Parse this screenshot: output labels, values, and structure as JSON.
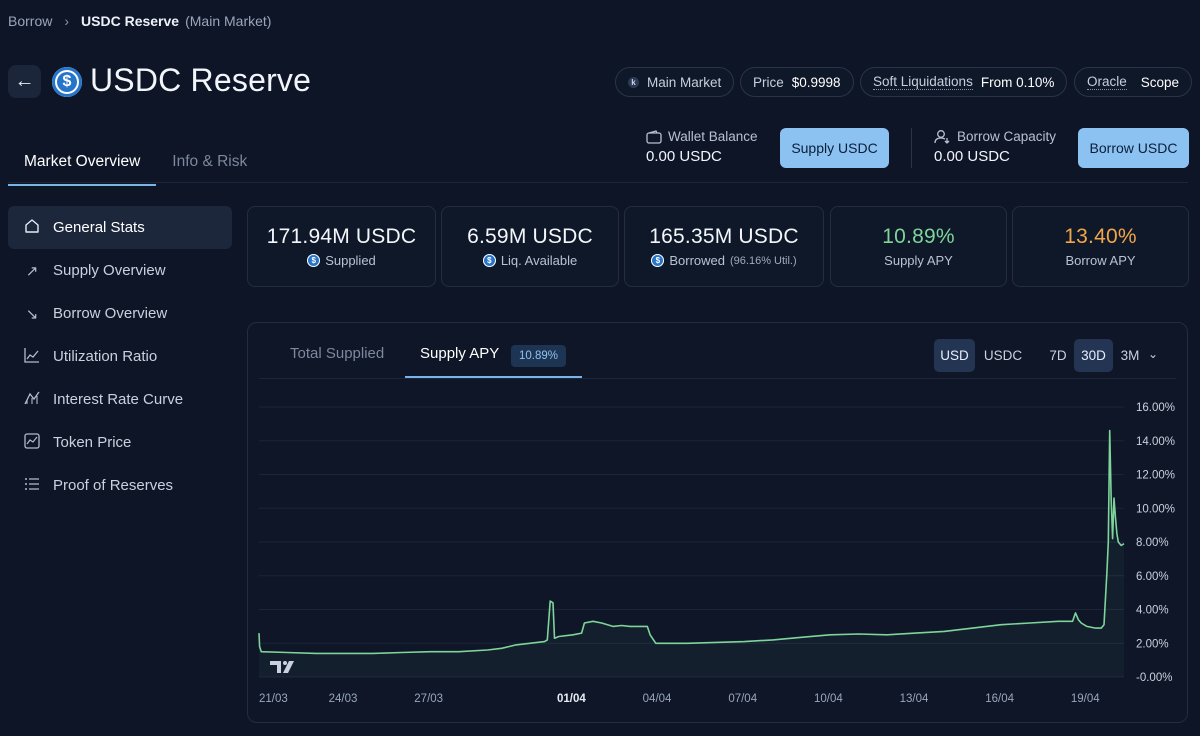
{
  "breadcrumb": {
    "parent": "Borrow",
    "current": "USDC Reserve",
    "market": "(Main Market)"
  },
  "title": "USDC Reserve",
  "header_pills": {
    "market": "Main Market",
    "price_label": "Price",
    "price_value": "$0.9998",
    "soft_liq_label": "Soft Liquidations",
    "soft_liq_value": "From 0.10%",
    "oracle_label": "Oracle",
    "oracle_value": "Scope"
  },
  "tabs": [
    {
      "label": "Market Overview"
    },
    {
      "label": "Info & Risk"
    }
  ],
  "wallet": {
    "label": "Wallet Balance",
    "value": "0.00 USDC",
    "button": "Supply USDC"
  },
  "capacity": {
    "label": "Borrow Capacity",
    "value": "0.00 USDC",
    "button": "Borrow USDC"
  },
  "sidebar": {
    "items": [
      {
        "label": "General Stats",
        "icon": "home-icon"
      },
      {
        "label": "Supply Overview",
        "icon": "arrow-up-right-icon"
      },
      {
        "label": "Borrow Overview",
        "icon": "arrow-down-right-icon"
      },
      {
        "label": "Utilization Ratio",
        "icon": "line-chart-icon"
      },
      {
        "label": "Interest Rate Curve",
        "icon": "curve-icon"
      },
      {
        "label": "Token Price",
        "icon": "price-chart-icon"
      },
      {
        "label": "Proof of Reserves",
        "icon": "list-icon"
      }
    ]
  },
  "stats": {
    "supplied": {
      "value": "171.94M USDC",
      "label": "Supplied"
    },
    "liquidity": {
      "value": "6.59M USDC",
      "label": "Liq. Available"
    },
    "borrowed": {
      "value": "165.35M USDC",
      "label": "Borrowed",
      "util": "(96.16% Util.)"
    },
    "supply_apy": {
      "value": "10.89%",
      "label": "Supply APY"
    },
    "borrow_apy": {
      "value": "13.40%",
      "label": "Borrow APY"
    }
  },
  "colors": {
    "supply_apy": "#7fd49a",
    "borrow_apy": "#f2a64a",
    "line": "#7fd49a",
    "accent": "#8cc2f2"
  },
  "chart_tabs": {
    "total_supplied": "Total Supplied",
    "supply_apy": "Supply APY",
    "badge": "10.89%"
  },
  "chart_controls": {
    "usd": "USD",
    "usdc": "USDC",
    "d7": "7D",
    "d30": "30D",
    "m3": "3M"
  },
  "chart_data": {
    "type": "line",
    "title": "Supply APY",
    "xlabel": "",
    "ylabel": "",
    "ylim": [
      -0.3,
      16.5
    ],
    "y_ticks": [
      "16.00%",
      "14.00%",
      "12.00%",
      "10.00%",
      "8.00%",
      "6.00%",
      "4.00%",
      "2.00%",
      "-0.00%"
    ],
    "y_tick_values": [
      16,
      14,
      12,
      10,
      8,
      6,
      4,
      2,
      0
    ],
    "x_ticks": [
      "21/03",
      "24/03",
      "27/03",
      "01/04",
      "04/04",
      "07/04",
      "10/04",
      "13/04",
      "16/04",
      "19/04"
    ],
    "x_tick_days": [
      0,
      3,
      6,
      11,
      14,
      17,
      20,
      23,
      26,
      29
    ],
    "xlim_days": [
      0,
      30.3
    ],
    "series": [
      {
        "name": "Supply APY",
        "x": [
          0,
          0.02,
          0.08,
          1,
          2,
          3,
          4,
          5,
          6,
          7,
          8,
          8.5,
          9,
          10,
          10.1,
          10.2,
          10.3,
          10.35,
          10.5,
          11,
          11.3,
          11.4,
          11.7,
          12,
          12.4,
          12.7,
          13,
          13.6,
          13.7,
          13.9,
          14,
          15,
          16,
          17,
          18,
          19,
          20,
          21,
          22,
          23,
          24,
          25,
          26,
          27,
          28,
          28.5,
          28.6,
          28.7,
          28.8,
          29,
          29.3,
          29.5,
          29.6,
          29.7,
          29.75,
          29.8,
          29.85,
          29.9,
          29.95,
          30,
          30.05,
          30.1,
          30.2,
          30.3
        ],
        "values": [
          2.6,
          1.8,
          1.5,
          1.45,
          1.4,
          1.4,
          1.4,
          1.45,
          1.5,
          1.5,
          1.6,
          1.7,
          1.9,
          2.1,
          2.2,
          4.5,
          4.4,
          2.3,
          2.4,
          2.5,
          2.6,
          3.2,
          3.3,
          3.2,
          3.0,
          3.05,
          3.0,
          3.0,
          2.5,
          2.0,
          2.0,
          2.0,
          2.05,
          2.1,
          2.2,
          2.35,
          2.5,
          2.55,
          2.5,
          2.6,
          2.7,
          2.9,
          3.1,
          3.2,
          3.3,
          3.3,
          3.8,
          3.4,
          3.2,
          3.0,
          2.9,
          2.9,
          3.1,
          6.2,
          8.0,
          14.6,
          10.5,
          8.2,
          10.6,
          9.5,
          8.5,
          8.0,
          7.8,
          7.9
        ]
      }
    ]
  }
}
